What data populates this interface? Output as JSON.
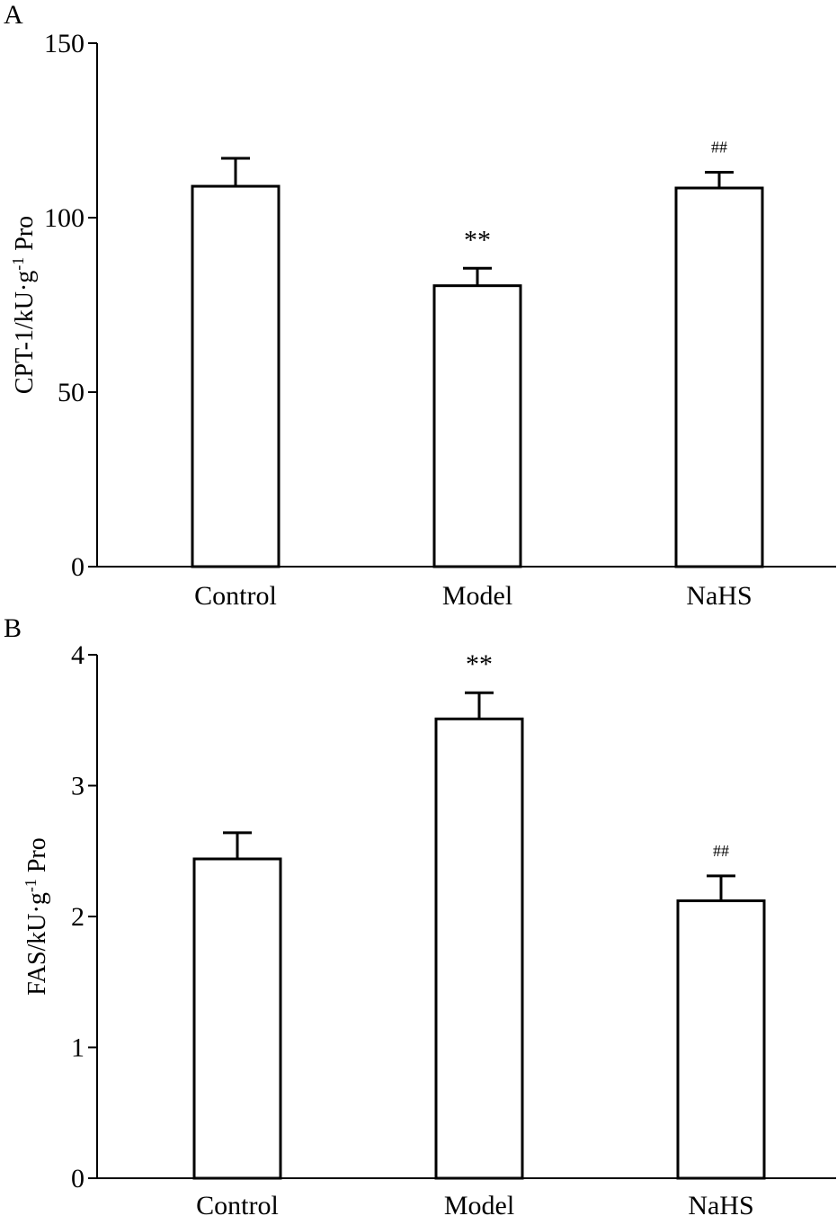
{
  "chart_data": [
    {
      "type": "bar",
      "panel_label": "A",
      "title": "",
      "xlabel": "",
      "ylabel": "CPT-1/kU·g",
      "ylabel_sup": "-1",
      "ylabel_suffix": " Pro",
      "ylim": [
        0,
        150
      ],
      "yticks": [
        0,
        50,
        100,
        150
      ],
      "categories": [
        "Control",
        "Model",
        "NaHS"
      ],
      "values": [
        109,
        80.5,
        108.5
      ],
      "errors": [
        8,
        5,
        4.5
      ],
      "annotations": [
        "",
        "**",
        "##"
      ]
    },
    {
      "type": "bar",
      "panel_label": "B",
      "title": "",
      "xlabel": "",
      "ylabel": "FAS/kU·g",
      "ylabel_sup": "-1",
      "ylabel_suffix": " Pro",
      "ylim": [
        0,
        4
      ],
      "yticks": [
        0,
        1,
        2,
        3,
        4
      ],
      "categories": [
        "Control",
        "Model",
        "NaHS"
      ],
      "values": [
        2.44,
        3.51,
        2.12
      ],
      "errors": [
        0.2,
        0.2,
        0.19
      ],
      "annotations": [
        "",
        "**",
        "##"
      ]
    }
  ]
}
